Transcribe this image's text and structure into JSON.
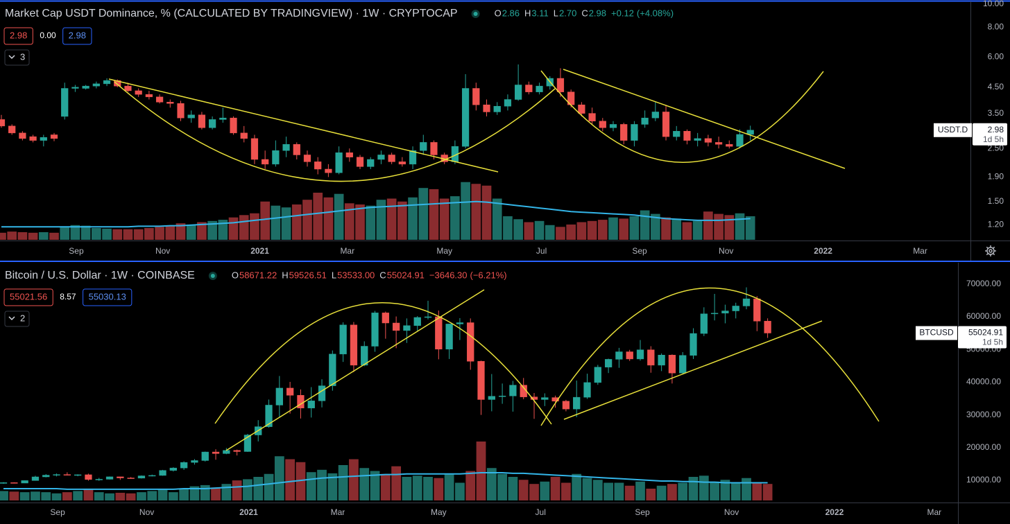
{
  "chart_data": [
    {
      "type": "candlestick",
      "title": "Market Cap USDT Dominance, % (CALCULATED BY TRADINGVIEW) · 1W · CRYPTOCAP",
      "ohlc_labels": [
        "O",
        "H",
        "L",
        "C"
      ],
      "ohlc_values": [
        2.86,
        3.11,
        {
          "value": 2.7,
          "label": "2.70"
        },
        2.98
      ],
      "change": {
        "value": 0.12,
        "label": "+0.12"
      },
      "change_pct": {
        "value": 4.08,
        "label": "(+4.08%)"
      },
      "bid": 2.98,
      "spread": {
        "value": 0,
        "label": "0.00"
      },
      "ask": 2.98,
      "indicators": 3,
      "symbol": "USDT.D",
      "last": 2.98,
      "countdown": "1d 5h",
      "log": true,
      "grid": false,
      "ylim": [
        1.04,
        10.12
      ],
      "yticks": [
        {
          "value": 1.2,
          "label": "1.20"
        },
        {
          "value": 1.5,
          "label": "1.50"
        },
        {
          "value": 1.9,
          "label": "1.90"
        },
        {
          "value": 2.5,
          "label": "2.50"
        },
        {
          "value": 3.5,
          "label": "3.50"
        },
        {
          "value": 4.5,
          "label": "4.50"
        },
        {
          "value": 6,
          "label": "6.00"
        },
        {
          "value": 8,
          "label": "8.00"
        },
        {
          "value": 10,
          "label": "10.00"
        }
      ],
      "xlim": [
        -0.13,
        91.8
      ],
      "xticks": [
        {
          "value": 7.1,
          "label": "Sep"
        },
        {
          "value": 15.3,
          "label": "Nov"
        },
        {
          "value": 24.5,
          "label": "2021"
        },
        {
          "value": 32.8,
          "label": "Mar"
        },
        {
          "value": 42,
          "label": "May"
        },
        {
          "value": 51.2,
          "label": "Jul"
        },
        {
          "value": 60.5,
          "label": "Sep"
        },
        {
          "value": 68.7,
          "label": "Nov"
        },
        {
          "value": 77.9,
          "label": "2022"
        },
        {
          "value": 87.1,
          "label": "Mar"
        }
      ],
      "open": [
        3.3,
        3.1,
        2.9,
        2.8,
        2.7,
        2.85,
        3.4,
        4.45,
        4.45,
        4.55,
        4.65,
        4.8,
        4.55,
        4.35,
        4.2,
        4.1,
        3.9,
        3.85,
        3.35,
        3.45,
        3.05,
        3.3,
        3.35,
        2.9,
        2.75,
        2.25,
        2.15,
        2.45,
        2.6,
        2.35,
        2.2,
        2.05,
        1.98,
        2.4,
        2.3,
        2.1,
        2.25,
        2.35,
        2.2,
        2.15,
        2.45,
        2.65,
        2.35,
        2.2,
        2.55,
        4.45,
        3.8,
        3.55,
        3.75,
        4.0,
        4.6,
        4.3,
        4.55,
        4.9,
        4.3,
        3.8,
        3.5,
        3.25,
        3.05,
        3.15,
        2.7,
        3.15,
        3.35,
        3.55,
        2.8,
        2.95,
        2.7,
        2.75,
        2.65,
        2.6,
        2.55,
        2.86
      ],
      "high": [
        3.45,
        3.15,
        2.95,
        2.85,
        2.85,
        2.9,
        4.7,
        4.6,
        4.6,
        4.75,
        4.9,
        4.85,
        4.7,
        4.45,
        4.35,
        4.2,
        4.0,
        3.95,
        3.6,
        3.55,
        3.4,
        3.7,
        3.4,
        3.1,
        2.85,
        2.45,
        2.7,
        2.8,
        2.65,
        2.45,
        2.3,
        2.15,
        2.55,
        2.5,
        2.35,
        2.3,
        2.45,
        2.4,
        2.3,
        2.55,
        2.85,
        2.7,
        2.4,
        2.7,
        5.1,
        4.7,
        4.0,
        3.9,
        4.2,
        5.6,
        4.75,
        4.7,
        5.0,
        5.4,
        4.4,
        3.9,
        3.7,
        3.35,
        3.25,
        3.2,
        3.25,
        3.6,
        3.9,
        3.8,
        3.1,
        3.0,
        2.9,
        2.85,
        2.8,
        2.7,
        3.0,
        3.11
      ],
      "low": [
        3.05,
        2.85,
        2.7,
        2.65,
        2.55,
        2.68,
        3.3,
        4.3,
        4.4,
        4.45,
        4.55,
        4.5,
        4.3,
        4.1,
        4.0,
        3.85,
        3.7,
        3.25,
        3.2,
        3.0,
        3.0,
        3.2,
        2.85,
        2.65,
        2.15,
        2.05,
        2.1,
        2.3,
        2.25,
        2.1,
        1.95,
        1.9,
        1.95,
        2.2,
        2.05,
        2.05,
        2.15,
        2.15,
        2.1,
        2.05,
        2.35,
        2.25,
        2.15,
        2.15,
        2.5,
        3.6,
        3.4,
        3.45,
        3.6,
        3.95,
        4.2,
        4.2,
        4.4,
        4.1,
        3.7,
        3.4,
        3.15,
        2.95,
        2.95,
        2.6,
        2.55,
        3.05,
        3.25,
        2.7,
        2.7,
        2.6,
        2.55,
        2.55,
        2.5,
        2.5,
        2.5,
        2.7
      ],
      "close": [
        3.1,
        2.9,
        2.75,
        2.7,
        2.78,
        2.75,
        4.45,
        4.5,
        4.55,
        4.65,
        4.8,
        4.55,
        4.35,
        4.2,
        4.1,
        3.9,
        3.85,
        3.35,
        3.45,
        3.05,
        3.3,
        3.35,
        2.9,
        2.75,
        2.25,
        2.15,
        2.45,
        2.6,
        2.35,
        2.2,
        2.05,
        1.98,
        2.4,
        2.3,
        2.1,
        2.25,
        2.35,
        2.2,
        2.15,
        2.45,
        2.65,
        2.35,
        2.2,
        2.55,
        4.45,
        3.8,
        3.55,
        3.75,
        4.0,
        4.6,
        4.3,
        4.55,
        4.9,
        4.3,
        3.8,
        3.5,
        3.25,
        3.05,
        3.15,
        2.7,
        3.15,
        3.35,
        3.55,
        2.8,
        2.95,
        2.7,
        2.75,
        2.65,
        2.6,
        2.55,
        2.86,
        2.98
      ],
      "volume": [
        12,
        14,
        13,
        12,
        13,
        12,
        22,
        25,
        24,
        20,
        19,
        18,
        18,
        18,
        20,
        22,
        24,
        28,
        26,
        30,
        32,
        34,
        38,
        42,
        45,
        65,
        58,
        55,
        60,
        68,
        80,
        72,
        78,
        62,
        60,
        58,
        68,
        70,
        65,
        72,
        88,
        86,
        70,
        74,
        98,
        95,
        92,
        70,
        40,
        35,
        30,
        32,
        25,
        22,
        26,
        30,
        32,
        34,
        38,
        36,
        40,
        50,
        44,
        38,
        36,
        30,
        32,
        48,
        44,
        42,
        45,
        40
      ],
      "volume_ma": [
        22,
        22,
        22,
        22,
        22,
        22,
        22,
        22,
        22,
        22,
        22,
        22,
        22,
        23,
        23,
        23,
        24,
        24,
        25,
        26,
        27,
        28,
        29,
        31,
        33,
        35,
        37,
        39,
        41,
        43,
        45,
        47,
        49,
        51,
        53,
        55,
        56,
        57,
        58,
        59,
        60,
        61,
        62,
        63,
        64,
        65,
        64,
        62,
        60,
        58,
        56,
        54,
        52,
        50,
        48,
        47,
        46,
        45,
        44,
        43,
        42,
        40,
        38,
        36,
        35,
        34,
        33,
        33,
        33,
        34,
        35,
        36
      ],
      "vol_lim": [
        0,
        100
      ],
      "up_color": "#26a69a",
      "down_color": "#ef5350",
      "vol_up_color": "#1d6e66",
      "vol_down_color": "#8a2c2f",
      "ma_color": "#33b5e8"
    },
    {
      "type": "candlestick",
      "title": "Bitcoin / U.S. Dollar · 1W · COINBASE",
      "ohlc_labels": [
        "O",
        "H",
        "L",
        "C"
      ],
      "ohlc_values": [
        58671.22,
        59526.51,
        {
          "value": 53533,
          "label": "53533.00"
        },
        55024.91
      ],
      "change": {
        "value": -3646.3,
        "label": "−3646.30"
      },
      "change_pct": {
        "value": -6.21,
        "label": "(−6.21%)"
      },
      "bid": 55021.56,
      "spread": 8.57,
      "ask": 55030.13,
      "indicators": 2,
      "symbol": "BTCUSD",
      "last": 55024.91,
      "countdown": "1d 5h",
      "log": false,
      "grid": false,
      "ylim": [
        3220,
        75900
      ],
      "yticks": [
        {
          "value": 10000,
          "label": "10000.00"
        },
        {
          "value": 20000,
          "label": "20000.00"
        },
        {
          "value": 30000,
          "label": "30000.00"
        },
        {
          "value": 40000,
          "label": "40000.00"
        },
        {
          "value": 50000,
          "label": "50000.00"
        },
        {
          "value": 60000,
          "label": "60000.00"
        },
        {
          "value": 70000,
          "label": "70000.00"
        }
      ],
      "xlim": [
        -0.33,
        89.87
      ],
      "xticks": [
        {
          "value": 5.1,
          "label": "Sep"
        },
        {
          "value": 13.5,
          "label": "Nov"
        },
        {
          "value": 23.1,
          "label": "2021"
        },
        {
          "value": 31.5,
          "label": "Mar"
        },
        {
          "value": 41,
          "label": "May"
        },
        {
          "value": 50.6,
          "label": "Jul"
        },
        {
          "value": 60.2,
          "label": "Sep"
        },
        {
          "value": 68.6,
          "label": "Nov"
        },
        {
          "value": 78.3,
          "label": "2022"
        },
        {
          "value": 87.7,
          "label": "Mar"
        }
      ],
      "open": [
        9070,
        9290,
        9160,
        9930,
        11060,
        11580,
        11770,
        11650,
        11710,
        10250,
        10330,
        11080,
        10730,
        10670,
        11370,
        11500,
        13030,
        13780,
        15480,
        16050,
        18670,
        18180,
        19150,
        18800,
        23870,
        26400,
        33000,
        38200,
        36000,
        32100,
        34300,
        38900,
        48600,
        57500,
        45200,
        51000,
        61200,
        58100,
        55800,
        57300,
        59800,
        60000,
        50100,
        57800,
        58200,
        46400,
        34700,
        35700,
        35800,
        39100,
        35500,
        34700,
        35300,
        34200,
        31800,
        35400,
        39900,
        44600,
        47000,
        49300,
        47100,
        49900,
        45200,
        48300,
        42800,
        48200,
        54900,
        60900,
        61100,
        61800,
        63300,
        65500,
        58671.22
      ],
      "high": [
        9450,
        9400,
        9990,
        11400,
        11900,
        12100,
        12450,
        11850,
        12050,
        10750,
        11180,
        11100,
        11000,
        11500,
        11750,
        13200,
        14000,
        15800,
        16500,
        18800,
        19500,
        19900,
        19400,
        24200,
        28400,
        34700,
        41900,
        40100,
        37800,
        38500,
        40900,
        49700,
        58300,
        58400,
        52500,
        61800,
        61600,
        60100,
        59500,
        60200,
        64900,
        61900,
        57900,
        59600,
        59500,
        46600,
        42500,
        39600,
        40400,
        41300,
        36700,
        36600,
        35900,
        34600,
        40500,
        42600,
        45300,
        47200,
        50500,
        49900,
        52900,
        51000,
        48800,
        48500,
        49200,
        56500,
        62900,
        67000,
        63700,
        64300,
        69000,
        66300,
        59526.51
      ],
      "low": [
        8950,
        9050,
        9150,
        9900,
        10900,
        11200,
        11500,
        11250,
        9900,
        9850,
        10250,
        10150,
        10500,
        10550,
        11200,
        11400,
        12700,
        13200,
        14800,
        15750,
        16300,
        18000,
        17600,
        18700,
        21900,
        26100,
        29400,
        30400,
        28900,
        29200,
        32300,
        37400,
        46200,
        43100,
        44900,
        49300,
        53300,
        50400,
        52000,
        55600,
        59200,
        47000,
        47100,
        52900,
        43800,
        30000,
        31100,
        33400,
        31000,
        34800,
        28800,
        32700,
        32200,
        31100,
        29300,
        34900,
        39200,
        42800,
        44400,
        46500,
        46600,
        42900,
        43400,
        39600,
        42400,
        47100,
        54100,
        58900,
        58000,
        59500,
        62300,
        55600,
        53533
      ],
      "close": [
        9290,
        9160,
        9930,
        11060,
        11580,
        11770,
        11650,
        11710,
        10250,
        10330,
        11080,
        10730,
        10670,
        11370,
        11500,
        13030,
        13780,
        15480,
        16050,
        18670,
        18180,
        19150,
        18800,
        23870,
        26400,
        33000,
        38200,
        36000,
        32100,
        34300,
        38900,
        48600,
        57500,
        45200,
        51000,
        61200,
        58100,
        55800,
        57300,
        59800,
        60000,
        50100,
        57800,
        58200,
        46400,
        34700,
        35700,
        35800,
        39100,
        35500,
        34700,
        35300,
        34200,
        31800,
        35400,
        39900,
        44600,
        47000,
        49300,
        47100,
        49900,
        45200,
        48300,
        42800,
        48200,
        54900,
        60900,
        61100,
        61800,
        63300,
        65500,
        58671.22,
        55024.91
      ],
      "volume": [
        16,
        15,
        14,
        15,
        14,
        12,
        14,
        16,
        20,
        14,
        12,
        13,
        12,
        14,
        16,
        18,
        14,
        20,
        24,
        26,
        22,
        28,
        34,
        36,
        40,
        45,
        75,
        70,
        65,
        48,
        52,
        46,
        60,
        70,
        55,
        50,
        45,
        58,
        40,
        42,
        40,
        38,
        44,
        30,
        50,
        100,
        55,
        45,
        40,
        35,
        28,
        32,
        40,
        30,
        45,
        38,
        35,
        30,
        30,
        25,
        32,
        20,
        25,
        28,
        30,
        40,
        42,
        32,
        35,
        30,
        38,
        30,
        28
      ],
      "volume_ma": [
        20,
        20,
        20,
        20,
        20,
        20,
        19,
        19,
        19,
        19,
        19,
        19,
        19,
        19,
        19,
        19,
        19,
        20,
        20,
        20,
        21,
        22,
        23,
        24,
        26,
        28,
        30,
        32,
        34,
        36,
        38,
        39,
        40,
        41,
        42,
        43,
        44,
        44,
        45,
        45,
        45,
        45,
        45,
        45,
        46,
        47,
        47,
        47,
        46,
        46,
        45,
        44,
        43,
        42,
        41,
        40,
        39,
        38,
        37,
        36,
        35,
        34,
        33,
        33,
        32,
        32,
        31,
        31,
        30,
        30,
        30,
        30,
        30
      ],
      "vol_lim": [
        0,
        100
      ],
      "up_color": "#26a69a",
      "down_color": "#ef5350",
      "vol_up_color": "#1d6e66",
      "vol_down_color": "#8a2c2f",
      "ma_color": "#33b5e8"
    }
  ]
}
